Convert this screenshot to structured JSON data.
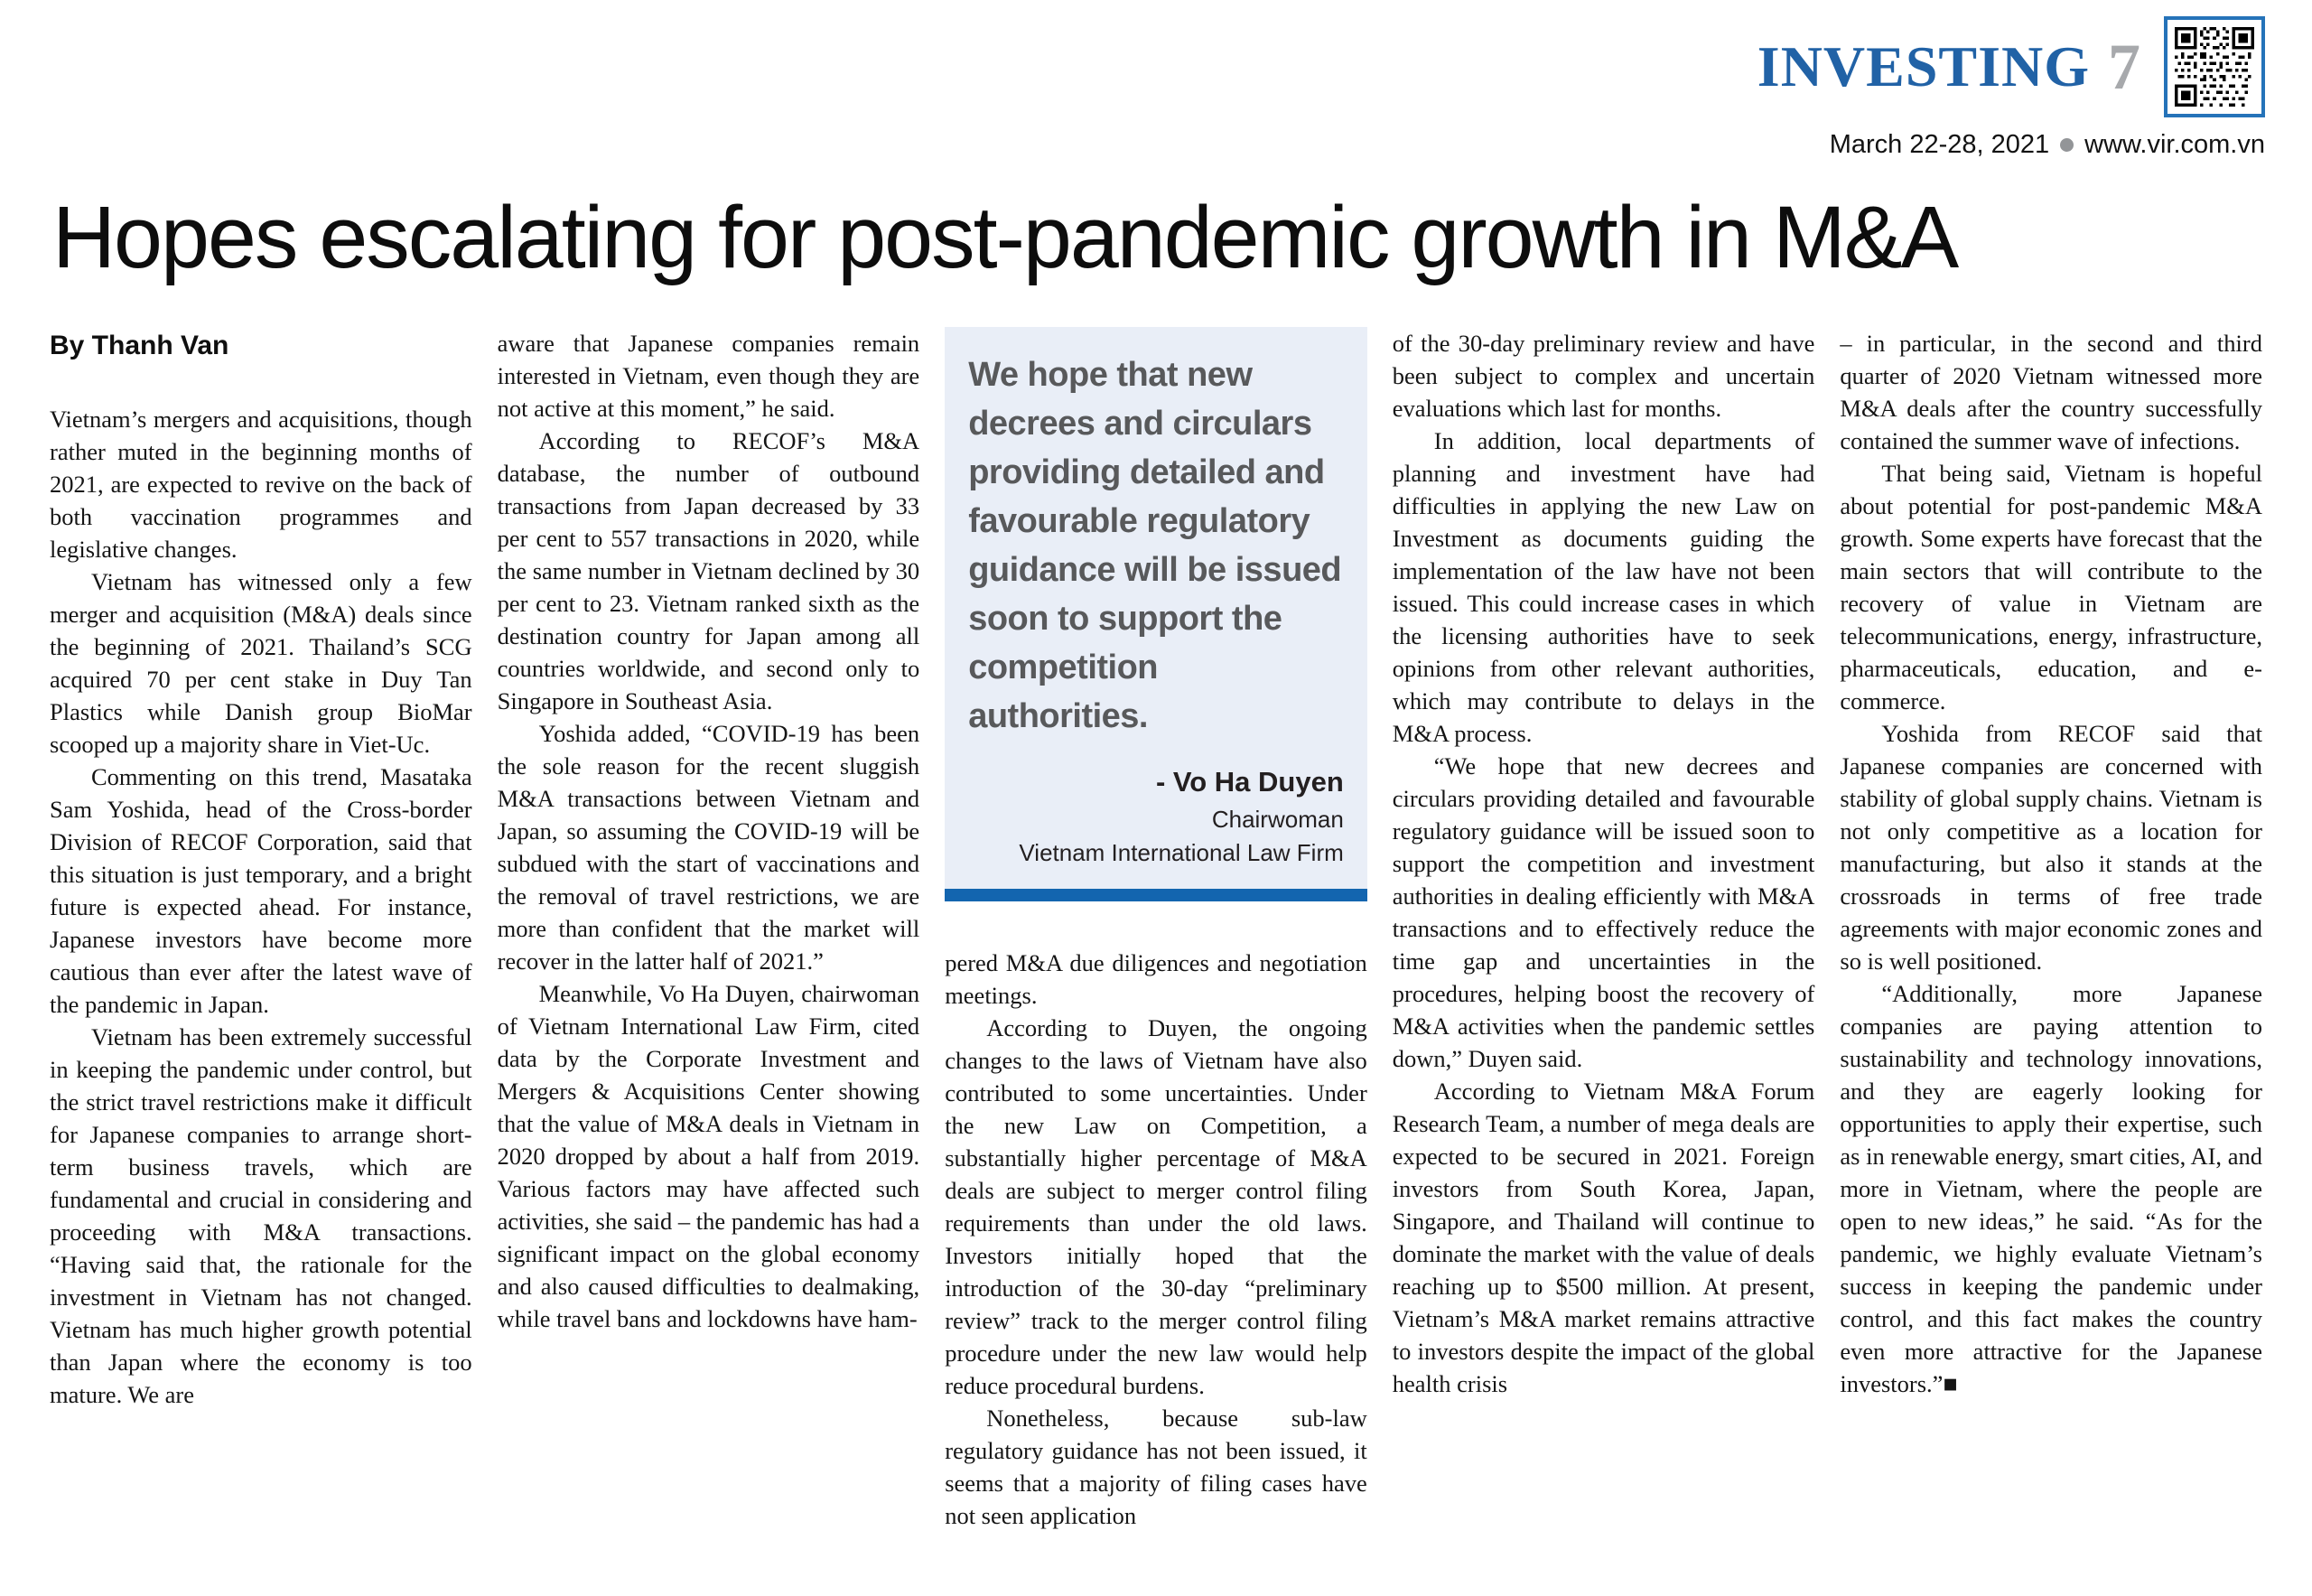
{
  "header": {
    "brand": "INVESTING",
    "page_number": "7",
    "date": "March 22-28, 2021",
    "website": "www.vir.com.vn"
  },
  "colors": {
    "brand_blue": "#2162a6",
    "page_number_gray": "#a7a9ac",
    "qr_border_blue": "#2573b9",
    "quote_background": "#e9eef7",
    "quote_text_gray": "#58595b",
    "accent_bar_blue": "#1365af",
    "bullet_gray": "#939598"
  },
  "article": {
    "headline": "Hopes escalating for post-pandemic growth in M&A",
    "byline": "By Thanh Van",
    "end_mark": "■"
  },
  "quote_box": {
    "text": "We hope that new decrees and circulars providing detailed and favourable regulatory guidance will be issued soon to support the competition authorities.",
    "attribution_name": "- Vo Ha Duyen",
    "attribution_title": "Chairwoman",
    "attribution_org": "Vietnam International Law Firm"
  },
  "columns": [
    {
      "paragraphs": [
        {
          "indent": false,
          "text": "Vietnam’s mergers and acquisitions, though rather muted in the beginning months of 2021, are expected to revive on the back of both vaccination programmes and legislative changes."
        },
        {
          "indent": true,
          "text": "Vietnam has witnessed only a few merger and acquisition (M&A) deals since the beginning of 2021. Thailand’s SCG acquired 70 per cent stake in Duy Tan Plastics while Danish group BioMar scooped up a majority share in Viet-Uc."
        },
        {
          "indent": true,
          "text": "Commenting on this trend, Masataka Sam Yoshida, head of the Cross-border Division of RECOF Corporation, said that this situation is just temporary, and a bright future is expected ahead. For instance, Japanese investors have become more cautious than ever after the latest wave of the pandemic in Japan."
        },
        {
          "indent": true,
          "text": "Vietnam has been extremely successful in keeping the pandemic under control, but the strict travel restrictions make it difficult for Japanese companies to arrange short-term business travels, which are fundamental and crucial in considering and proceeding with M&A transactions. “Having said that, the rationale for the investment in Vietnam has not changed. Vietnam has much higher growth potential than Japan where the economy is too mature. We are"
        }
      ]
    },
    {
      "paragraphs": [
        {
          "indent": false,
          "text": "aware that Japanese companies remain interested in Vietnam, even though they are not active at this moment,” he said."
        },
        {
          "indent": true,
          "text": "According to RECOF’s M&A database, the number of outbound transactions from Japan decreased by 33 per cent to 557 transactions in 2020, while the same number in Vietnam declined by 30 per cent to 23. Vietnam ranked sixth as the destination country for Japan among all countries worldwide, and second only to Singapore in Southeast Asia."
        },
        {
          "indent": true,
          "text": "Yoshida added, “COVID-19 has been the sole reason for the recent sluggish M&A transactions between Vietnam and Japan, so assuming the COVID-19 will be subdued with the start of vaccinations and the removal of travel restrictions, we are more than confident that the market will recover in the latter half of 2021.”"
        },
        {
          "indent": true,
          "text": "Meanwhile, Vo Ha Duyen, chairwoman of Vietnam International Law Firm, cited data by the Corporate Investment and Mergers & Acquisitions Center showing that the value of M&A deals in Vietnam in 2020 dropped by about a half from 2019. Various factors may have affected such activities, she said – the pandemic has had a significant impact on the global economy and also caused difficulties to dealmaking, while travel bans and lockdowns have ham-"
        }
      ]
    },
    {
      "paragraphs": [
        {
          "indent": false,
          "text": "pered M&A due diligences and negotiation meetings."
        },
        {
          "indent": true,
          "text": "According to Duyen, the ongoing changes to the laws of Vietnam have also contributed to some uncertainties. Under the new Law on Competition, a substantially higher percentage of M&A deals are subject to merger control filing requirements than under the old laws. Investors initially hoped that the introduction of the 30-day “preliminary review” track to the merger control filing procedure under the new law would help reduce procedural burdens."
        },
        {
          "indent": true,
          "text": "Nonetheless, because sub-law regulatory guidance has not been issued, it seems that a majority of filing cases have not seen application"
        }
      ]
    },
    {
      "paragraphs": [
        {
          "indent": false,
          "text": "of the 30-day preliminary review and have been subject to complex and uncertain evaluations which last for months."
        },
        {
          "indent": true,
          "text": "In addition, local departments of planning and investment have had difficulties in applying the new Law on Investment as documents guiding the implementation of the law have not been issued. This could increase cases in which the licensing authorities have to seek opinions from other relevant authorities, which may contribute to delays in the M&A process."
        },
        {
          "indent": true,
          "text": "“We hope that new decrees and circulars providing detailed and favourable regulatory guidance will be issued soon to support the competition and investment authorities in dealing efficiently with M&A transactions and to effectively reduce the time gap and uncertainties in the procedures, helping boost the recovery of M&A activities when the pandemic settles down,” Duyen said."
        },
        {
          "indent": true,
          "text": "According to Vietnam M&A Forum Research Team, a number of mega deals are expected to be secured in 2021. Foreign investors from South Korea, Japan, Singapore, and Thailand will continue to dominate the market with the value of deals reaching up to $500 million. At present, Vietnam’s M&A market remains attractive to investors despite the impact of the global health crisis"
        }
      ]
    },
    {
      "paragraphs": [
        {
          "indent": false,
          "text": "– in particular, in the second and third quarter of 2020 Vietnam witnessed more M&A deals after the country successfully contained the summer wave of infections."
        },
        {
          "indent": true,
          "text": "That being said, Vietnam is hopeful about potential for post-pandemic M&A growth. Some experts have forecast that the main sectors that will contribute to the recovery of value in Vietnam are telecommunications, energy, infrastructure, pharmaceuticals, education, and e-commerce."
        },
        {
          "indent": true,
          "text": "Yoshida from RECOF said that Japanese companies are concerned with stability of global supply chains. Vietnam is not only competitive as a location for manufacturing, but also it stands at the crossroads in terms of free trade agreements with major economic zones and so is well positioned."
        },
        {
          "indent": true,
          "text": "“Additionally, more Japanese companies are paying attention to sustainability and technology innovations, and they are eagerly looking for opportunities to apply their expertise, such as in renewable energy, smart cities, AI, and more in Vietnam, where the people are open to new ideas,” he said. “As for the pandemic, we highly evaluate Vietnam’s success in keeping the pandemic under control, and this fact makes the country even more attractive for the Japanese investors.”■"
        }
      ]
    }
  ]
}
